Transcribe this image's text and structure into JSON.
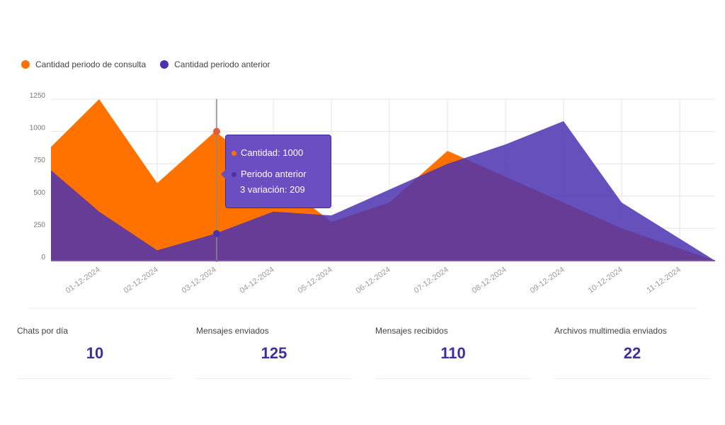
{
  "colors": {
    "current": "#ff7200",
    "previous": "#4b33b0",
    "overlap": "#55357f"
  },
  "legend": {
    "current_label": "Cantidad periodo de consulta",
    "previous_label": "Cantidad periodo anterior"
  },
  "chart_data": {
    "type": "area",
    "categories": [
      "01-12-2024",
      "02-12-2024",
      "03-12-2024",
      "04-12-2024",
      "05-12-2024",
      "06-12-2024",
      "07-12-2024",
      "08-12-2024",
      "09-12-2024",
      "10-12-2024",
      "11-12-2024"
    ],
    "start": {
      "current": 880,
      "previous": 700
    },
    "series": [
      {
        "name": "Cantidad periodo de consulta",
        "values": [
          1250,
          600,
          1000,
          650,
          300,
          450,
          850,
          650,
          450,
          250,
          0
        ]
      },
      {
        "name": "Cantidad periodo anterior",
        "values": [
          380,
          80,
          209,
          380,
          350,
          550,
          750,
          900,
          1080,
          450,
          0
        ]
      }
    ],
    "ylim": [
      0,
      1250
    ],
    "yticks": [
      0,
      250,
      500,
      750,
      1000,
      1250
    ],
    "grid": true,
    "legend_position": "top-left",
    "xlabel": "",
    "ylabel": ""
  },
  "tooltip": {
    "current_text": "Cantidad: 1000",
    "previous_line1": "Periodo anterior",
    "previous_line2": "3 variación: 209"
  },
  "stats": [
    {
      "label": "Chats por día",
      "value": "10"
    },
    {
      "label": "Mensajes enviados",
      "value": "125"
    },
    {
      "label": "Mensajes recibidos",
      "value": "110"
    },
    {
      "label": "Archivos multimedia enviados",
      "value": "22"
    }
  ]
}
